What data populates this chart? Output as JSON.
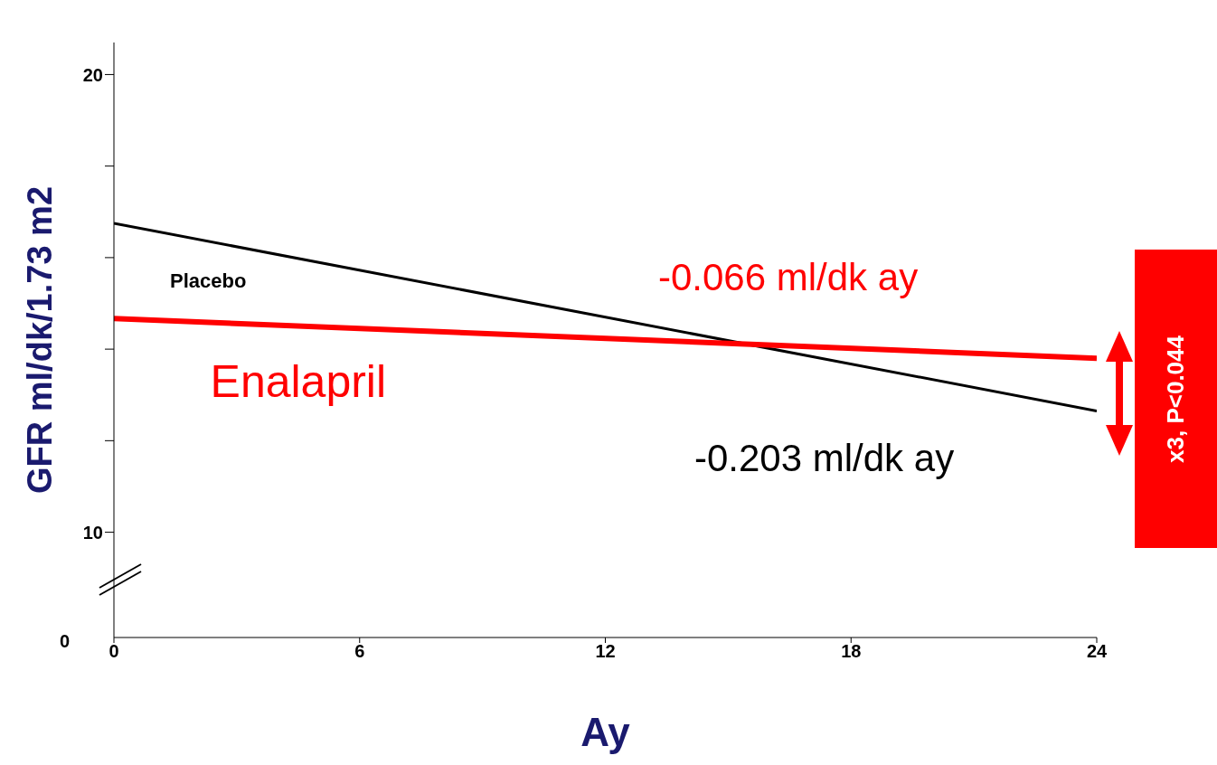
{
  "chart_data": {
    "type": "line",
    "xlabel": "Ay",
    "ylabel": "GFR ml/dk/1.73 m2",
    "x": [
      0,
      24
    ],
    "series": [
      {
        "name": "Placebo",
        "color": "#000000",
        "values": [
          16.75,
          12.65
        ]
      },
      {
        "name": "Enalapril",
        "color": "#ff0000",
        "values": [
          14.67,
          13.8
        ]
      }
    ],
    "xlim": [
      0,
      24
    ],
    "xticks": [
      0,
      6,
      12,
      18,
      24
    ],
    "ylim": [
      7.7,
      20.7
    ],
    "yticks": [
      10,
      {
        "value": 12,
        "label": null
      },
      {
        "value": 14,
        "label": null
      },
      {
        "value": 16,
        "label": null
      },
      {
        "value": 18,
        "label": null
      },
      20
    ],
    "annotations": [
      "-0.066 ml/dk ay",
      "-0.203 ml/dk ay",
      "x3, P<0.044",
      "0"
    ],
    "grid": false,
    "legend": false,
    "marker": "none",
    "line_style": "solid"
  }
}
